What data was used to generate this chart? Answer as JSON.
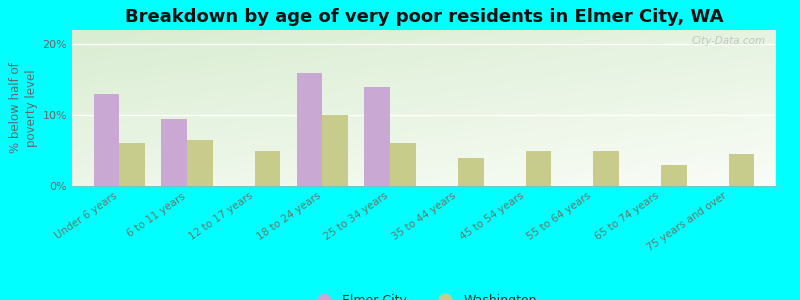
{
  "title": "Breakdown by age of very poor residents in Elmer City, WA",
  "ylabel": "% below half of\npoverty level",
  "categories": [
    "Under 6 years",
    "6 to 11 years",
    "12 to 17 years",
    "18 to 24 years",
    "25 to 34 years",
    "35 to 44 years",
    "45 to 54 years",
    "55 to 64 years",
    "65 to 74 years",
    "75 years and over"
  ],
  "elmer_city": [
    13.0,
    9.5,
    0.0,
    16.0,
    14.0,
    0.0,
    0.0,
    0.0,
    0.0,
    0.0
  ],
  "washington": [
    6.0,
    6.5,
    5.0,
    10.0,
    6.0,
    4.0,
    5.0,
    5.0,
    3.0,
    4.5
  ],
  "elmer_color": "#c9a8d4",
  "washington_color": "#c8cc8a",
  "background_outer": "#00ffff",
  "background_plot_top_left": "#d8ecd0",
  "background_plot_bottom_right": "#f8faf5",
  "ylim": [
    0,
    22
  ],
  "yticks": [
    0,
    10,
    20
  ],
  "ytick_labels": [
    "0%",
    "10%",
    "20%"
  ],
  "bar_width": 0.38,
  "title_fontsize": 13,
  "axis_label_fontsize": 8.5,
  "tick_fontsize": 8,
  "legend_fontsize": 9,
  "watermark": "City-Data.com"
}
